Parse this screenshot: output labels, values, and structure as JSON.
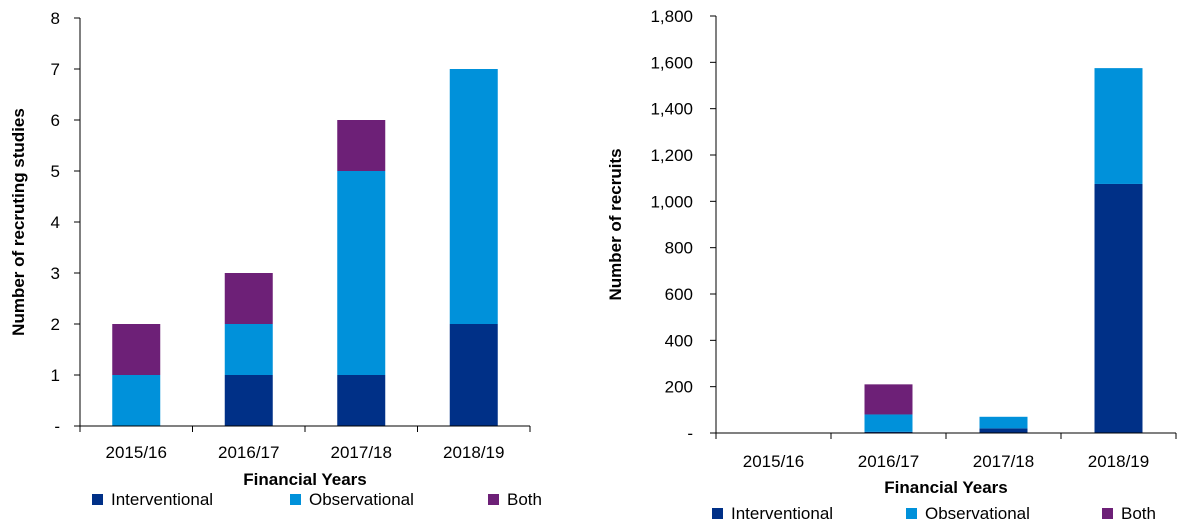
{
  "colors": {
    "interventional": "#003087",
    "observational": "#0091DA",
    "both": "#6D2077",
    "axis": "#000000"
  },
  "chart_data": [
    {
      "type": "bar",
      "stacked": true,
      "title": "",
      "xlabel": "Financial Years",
      "ylabel": "Number of recruting studies",
      "categories": [
        "2015/16",
        "2016/17",
        "2017/18",
        "2018/19"
      ],
      "ylim": [
        0,
        8
      ],
      "yticks": [
        0,
        1,
        2,
        3,
        4,
        5,
        6,
        7,
        8
      ],
      "ytick_labels": [
        "-",
        "1",
        "2",
        "3",
        "4",
        "5",
        "6",
        "7",
        "8"
      ],
      "series": [
        {
          "name": "Interventional",
          "values": [
            0,
            1,
            1,
            2
          ]
        },
        {
          "name": "Observational",
          "values": [
            1,
            1,
            4,
            5
          ]
        },
        {
          "name": "Both",
          "values": [
            1,
            1,
            1,
            0
          ]
        }
      ],
      "grid": false,
      "legend": "bottom"
    },
    {
      "type": "bar",
      "stacked": true,
      "title": "",
      "xlabel": "Financial Years",
      "ylabel": "Number of recruits",
      "categories": [
        "2015/16",
        "2016/17",
        "2017/18",
        "2018/19"
      ],
      "ylim": [
        0,
        1800
      ],
      "yticks": [
        0,
        200,
        400,
        600,
        800,
        1000,
        1200,
        1400,
        1600,
        1800
      ],
      "ytick_labels": [
        "-",
        "200",
        "400",
        "600",
        "800",
        "1,000",
        "1,200",
        "1,400",
        "1,600",
        "1,800"
      ],
      "series": [
        {
          "name": "Interventional",
          "values": [
            0,
            5,
            20,
            1075
          ]
        },
        {
          "name": "Observational",
          "values": [
            0,
            75,
            50,
            500
          ]
        },
        {
          "name": "Both",
          "values": [
            0,
            130,
            0,
            0
          ]
        }
      ],
      "grid": false,
      "legend": "bottom"
    }
  ]
}
